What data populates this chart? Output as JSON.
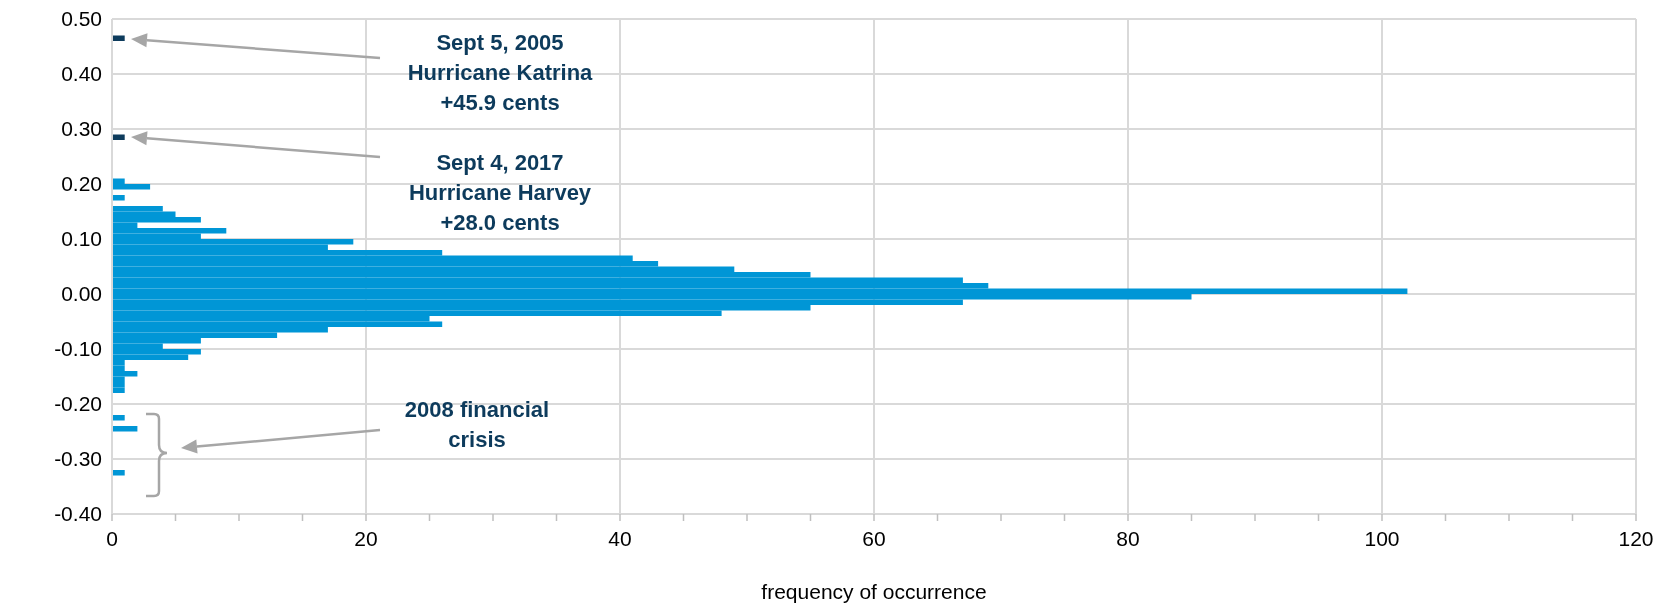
{
  "chart_data": {
    "type": "histogram",
    "orientation": "horizontal",
    "xlabel": "frequency of occurrence",
    "bins": [
      -0.33,
      -0.32,
      -0.31,
      -0.3,
      -0.29,
      -0.28,
      -0.27,
      -0.26,
      -0.25,
      -0.24,
      -0.23,
      -0.22,
      -0.21,
      -0.2,
      -0.19,
      -0.18,
      -0.17,
      -0.16,
      -0.15,
      -0.14,
      -0.13,
      -0.12,
      -0.11,
      -0.1,
      -0.09,
      -0.08,
      -0.07,
      -0.06,
      -0.05,
      -0.04,
      -0.03,
      -0.02,
      -0.01,
      0.0,
      0.01,
      0.02,
      0.03,
      0.04,
      0.05,
      0.06,
      0.07,
      0.08,
      0.09,
      0.1,
      0.11,
      0.12,
      0.13,
      0.14,
      0.15,
      0.16,
      0.17,
      0.18,
      0.19,
      0.2,
      0.21,
      0.22,
      0.23,
      0.24,
      0.25,
      0.26,
      0.27,
      0.28,
      0.29,
      0.3,
      0.31,
      0.32,
      0.33,
      0.34,
      0.35,
      0.36,
      0.37,
      0.38,
      0.39,
      0.4,
      0.41,
      0.42,
      0.43,
      0.44,
      0.45,
      0.46,
      0.47
    ],
    "values": [
      1,
      0,
      0,
      0,
      0,
      0,
      0,
      0,
      2,
      0,
      1,
      0,
      0,
      0,
      0,
      1,
      1,
      1,
      2,
      1,
      1,
      6,
      7,
      4,
      7,
      13,
      17,
      26,
      25,
      48,
      55,
      67,
      85,
      102,
      69,
      67,
      55,
      49,
      43,
      41,
      26,
      17,
      19,
      7,
      9,
      2,
      7,
      5,
      4,
      0,
      1,
      0,
      3,
      1,
      0,
      0,
      0,
      0,
      0,
      0,
      0,
      1,
      0,
      0,
      0,
      0,
      0,
      0,
      0,
      0,
      0,
      0,
      0,
      0,
      0,
      0,
      0,
      0,
      0,
      1
    ],
    "colors": [
      "#0096d6",
      "#0096d6",
      "#0096d6",
      "#0096d6",
      "#0096d6",
      "#0096d6",
      "#0096d6",
      "#0096d6",
      "#0096d6",
      "#0096d6",
      "#0096d6",
      "#0096d6",
      "#0096d6",
      "#0096d6",
      "#0096d6",
      "#0096d6",
      "#0096d6",
      "#0096d6",
      "#0096d6",
      "#0096d6",
      "#0096d6",
      "#0096d6",
      "#0096d6",
      "#0096d6",
      "#0096d6",
      "#0096d6",
      "#0096d6",
      "#0096d6",
      "#0096d6",
      "#0096d6",
      "#0096d6",
      "#0096d6",
      "#0096d6",
      "#0096d6",
      "#0096d6",
      "#0096d6",
      "#0096d6",
      "#0096d6",
      "#0096d6",
      "#0096d6",
      "#0096d6",
      "#0096d6",
      "#0096d6",
      "#0096d6",
      "#0096d6",
      "#0096d6",
      "#0096d6",
      "#0096d6",
      "#0096d6",
      "#0096d6",
      "#0096d6",
      "#0096d6",
      "#0096d6",
      "#0096d6",
      "#0096d6",
      "#0096d6",
      "#0096d6",
      "#0096d6",
      "#0096d6",
      "#0096d6",
      "#0096d6",
      "#0d3b5c",
      "#0096d6",
      "#0096d6",
      "#0096d6",
      "#0096d6",
      "#0096d6",
      "#0096d6",
      "#0096d6",
      "#0096d6",
      "#0096d6",
      "#0096d6",
      "#0096d6",
      "#0096d6",
      "#0096d6",
      "#0096d6",
      "#0096d6",
      "#0096d6",
      "#0096d6",
      "#0d3b5c"
    ],
    "xlim": [
      0,
      120
    ],
    "xticks": [
      0,
      {
        "value": 5,
        "label": null
      },
      {
        "value": 10,
        "label": null
      },
      {
        "value": 15,
        "label": null
      },
      20,
      {
        "value": 25,
        "label": null
      },
      {
        "value": 30,
        "label": null
      },
      {
        "value": 35,
        "label": null
      },
      40,
      {
        "value": 45,
        "label": null
      },
      {
        "value": 50,
        "label": null
      },
      {
        "value": 55,
        "label": null
      },
      60,
      {
        "value": 65,
        "label": null
      },
      {
        "value": 70,
        "label": null
      },
      {
        "value": 75,
        "label": null
      },
      80,
      {
        "value": 85,
        "label": null
      },
      {
        "value": 90,
        "label": null
      },
      {
        "value": 95,
        "label": null
      },
      100,
      {
        "value": 105,
        "label": null
      },
      {
        "value": 110,
        "label": null
      },
      {
        "value": 115,
        "label": null
      },
      120
    ],
    "ylim": [
      -0.4,
      0.5
    ],
    "yticks": [
      {
        "value": -0.4,
        "label": "-0.40"
      },
      {
        "value": -0.3,
        "label": "-0.30"
      },
      {
        "value": -0.2,
        "label": "-0.20"
      },
      {
        "value": -0.1,
        "label": "-0.10"
      },
      {
        "value": 0,
        "label": "0.00"
      },
      {
        "value": 0.1,
        "label": "0.10"
      },
      {
        "value": 0.2,
        "label": "0.20"
      },
      {
        "value": 0.3,
        "label": "0.30"
      },
      {
        "value": 0.4,
        "label": "0.40"
      },
      {
        "value": 0.5,
        "label": "0.50"
      }
    ],
    "grid": true,
    "annotations": [
      "Sept 5, 2005\nHurricane Katrina\n+45.9 cents",
      "Sept 4, 2017\nHurricane Harvey\n+28.0 cents",
      "2008 financial\ncrisis"
    ]
  }
}
